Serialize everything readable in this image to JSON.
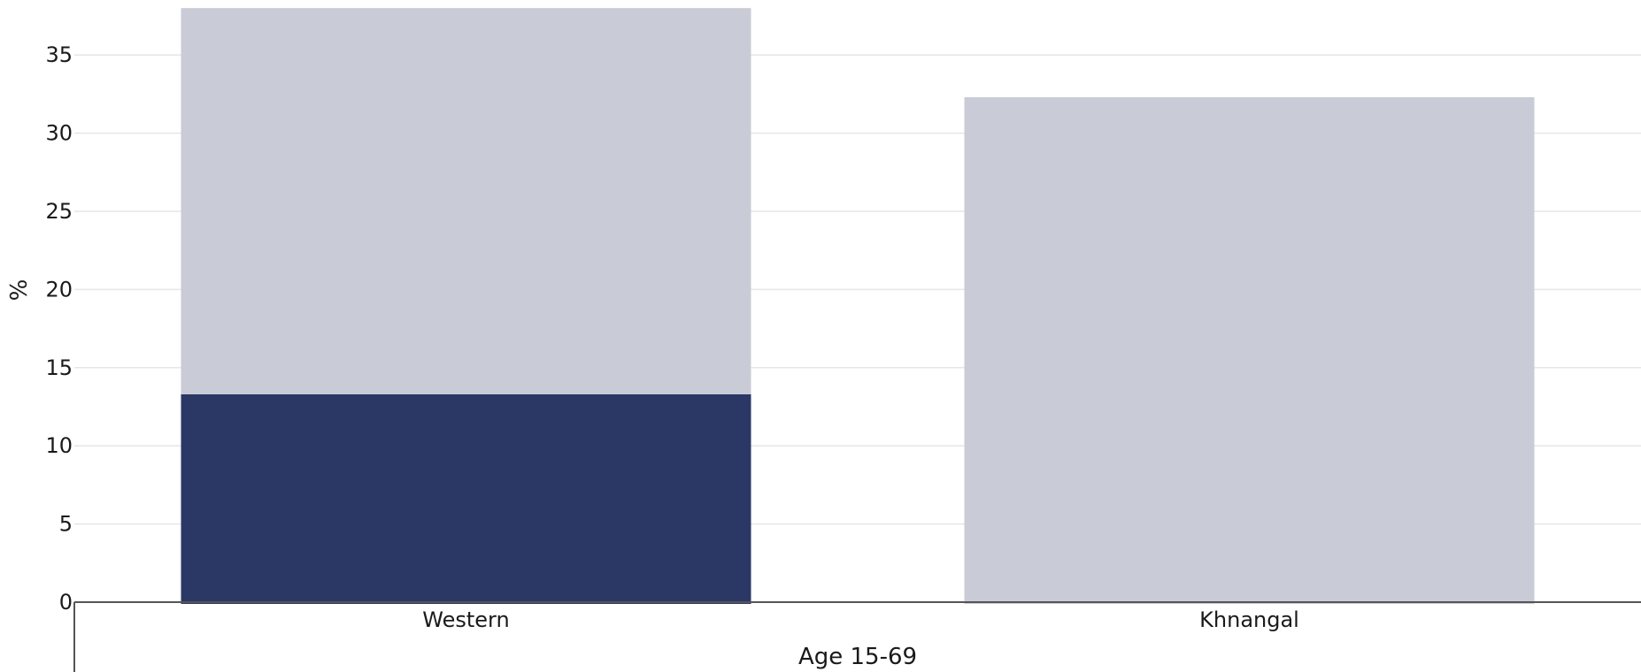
{
  "chart_data": {
    "type": "bar",
    "stacked": true,
    "title": "",
    "xlabel": "Age 15-69",
    "ylabel": "%",
    "ylim": [
      0,
      38
    ],
    "yticks": [
      0,
      5,
      10,
      15,
      20,
      25,
      30,
      35
    ],
    "grid": true,
    "categories": [
      "Western",
      "Khnangal"
    ],
    "series": [
      {
        "values": [
          13.3,
          0
        ],
        "color": "#2b3764"
      },
      {
        "values": [
          24.7,
          32.3
        ],
        "color": "#c9cbd7"
      }
    ],
    "totals": [
      38.0,
      32.3
    ]
  }
}
